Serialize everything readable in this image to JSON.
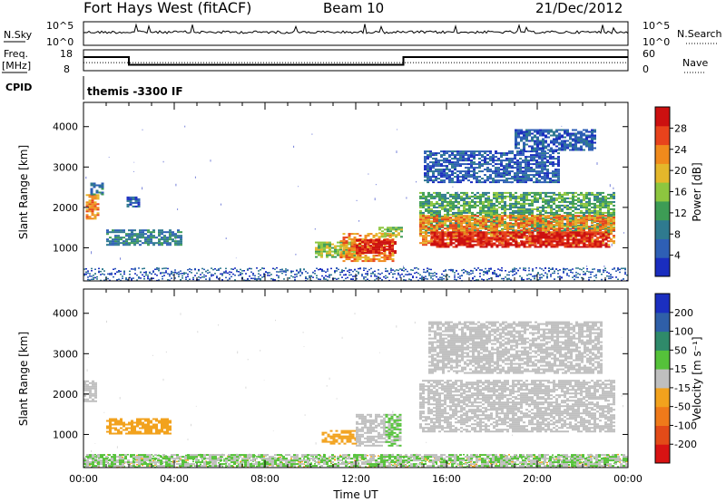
{
  "header": {
    "station": "Fort Hays West (fitACF)",
    "beam": "Beam 10",
    "date": "21/Dec/2012"
  },
  "nsky_panel": {
    "label": "N.Sky",
    "right_label": "N.Search",
    "ticks_left": [
      "10^5",
      "10^0"
    ],
    "ticks_right": [
      "10^5",
      "10^0"
    ]
  },
  "freq_panel": {
    "label_line1": "Freq.",
    "label_line2": "[MHz]",
    "right_label": "Nave",
    "ticks_left": [
      "18",
      "8"
    ],
    "ticks_right": [
      "60",
      "0"
    ],
    "freq_steps": [
      {
        "t0": 0.0,
        "t1": 2.0,
        "mhz": 14.5
      },
      {
        "t0": 2.0,
        "t1": 14.1,
        "mhz": 10.8
      },
      {
        "t0": 14.1,
        "t1": 24.0,
        "mhz": 14.5
      }
    ],
    "nave_level": 23
  },
  "cpid_panel": {
    "label": "CPID",
    "value": "themis -3300 IF"
  },
  "chart_data": [
    {
      "type": "heatmap",
      "name": "power",
      "ylabel": "Slant Range [km]",
      "xlabel": "Time UT",
      "xlim": [
        0,
        24
      ],
      "ylim": [
        180,
        4600
      ],
      "yticks": [
        "1000",
        "2000",
        "3000",
        "4000"
      ],
      "colorbar": {
        "label": "Power [dB]",
        "range": [
          0,
          32
        ],
        "ticks": [
          "4",
          "8",
          "12",
          "16",
          "20",
          "24",
          "28"
        ],
        "colors": [
          "#1a2dbf",
          "#2e5fb5",
          "#2f7a8f",
          "#3d9c55",
          "#8dc63f",
          "#e4b72b",
          "#f08a1c",
          "#e8431c",
          "#cc1010"
        ]
      },
      "regions": [
        {
          "t0": 0.1,
          "t1": 0.6,
          "r0": 1700,
          "r1": 2300,
          "level": 6
        },
        {
          "t0": 0.3,
          "t1": 0.8,
          "r0": 2300,
          "r1": 2600,
          "level": 2
        },
        {
          "t0": 1.9,
          "t1": 2.4,
          "r0": 2000,
          "r1": 2250,
          "level": 1
        },
        {
          "t0": 1.0,
          "t1": 4.3,
          "r0": 1050,
          "r1": 1450,
          "level": 2
        },
        {
          "t0": 10.2,
          "t1": 12.2,
          "r0": 750,
          "r1": 1150,
          "level": 4
        },
        {
          "t0": 11.3,
          "t1": 13.6,
          "r0": 650,
          "r1": 1350,
          "level": 6
        },
        {
          "t0": 12.0,
          "t1": 13.7,
          "r0": 850,
          "r1": 1200,
          "level": 8
        },
        {
          "t0": 13.0,
          "t1": 14.0,
          "r0": 1250,
          "r1": 1500,
          "level": 4
        },
        {
          "t0": 14.8,
          "t1": 23.4,
          "r0": 1350,
          "r1": 2350,
          "level": 3
        },
        {
          "t0": 14.8,
          "t1": 23.4,
          "r0": 1050,
          "r1": 1800,
          "level": 6
        },
        {
          "t0": 15.3,
          "t1": 23.2,
          "r0": 1000,
          "r1": 1400,
          "level": 8
        },
        {
          "t0": 15.0,
          "t1": 21.0,
          "r0": 2600,
          "r1": 3400,
          "level": 1
        },
        {
          "t0": 19.0,
          "t1": 22.5,
          "r0": 3400,
          "r1": 3900,
          "level": 1
        }
      ]
    },
    {
      "type": "heatmap",
      "name": "velocity",
      "ylabel": "Slant Range [km]",
      "xlabel": "Time UT",
      "xlim": [
        0,
        24
      ],
      "ylim": [
        180,
        4600
      ],
      "yticks": [
        "1000",
        "2000",
        "3000",
        "4000"
      ],
      "xticks": [
        "00:00",
        "04:00",
        "08:00",
        "12:00",
        "16:00",
        "20:00",
        "00:00"
      ],
      "colorbar": {
        "label": "Velocity [m s⁻¹]",
        "range": [
          -250,
          250
        ],
        "ticks": [
          "200",
          "100",
          "50",
          "15",
          "-15",
          "-50",
          "-100",
          "-200"
        ],
        "colors": [
          "#1b2fc0",
          "#2f5fa8",
          "#2f8a6a",
          "#55c23a",
          "#bfbfbf",
          "#f2a21d",
          "#ef7a1a",
          "#e34b18",
          "#d81313"
        ]
      },
      "regions": [
        {
          "t0": 0.0,
          "t1": 0.5,
          "r0": 1800,
          "r1": 2300,
          "vel": 0
        },
        {
          "t0": 1.0,
          "t1": 3.8,
          "r0": 1000,
          "r1": 1400,
          "vel": -60
        },
        {
          "t0": 10.5,
          "t1": 12.0,
          "r0": 750,
          "r1": 1100,
          "vel": -60
        },
        {
          "t0": 12.0,
          "t1": 13.3,
          "r0": 700,
          "r1": 1500,
          "vel": 0
        },
        {
          "t0": 13.3,
          "t1": 14.0,
          "r0": 700,
          "r1": 1500,
          "vel": 40
        },
        {
          "t0": 14.8,
          "t1": 23.4,
          "r0": 1050,
          "r1": 2350,
          "vel": 0
        },
        {
          "t0": 15.2,
          "t1": 22.8,
          "r0": 2500,
          "r1": 3800,
          "vel": 0
        },
        {
          "t0": 0.0,
          "t1": 24.0,
          "r0": 200,
          "r1": 500,
          "vel": 30
        }
      ]
    }
  ]
}
